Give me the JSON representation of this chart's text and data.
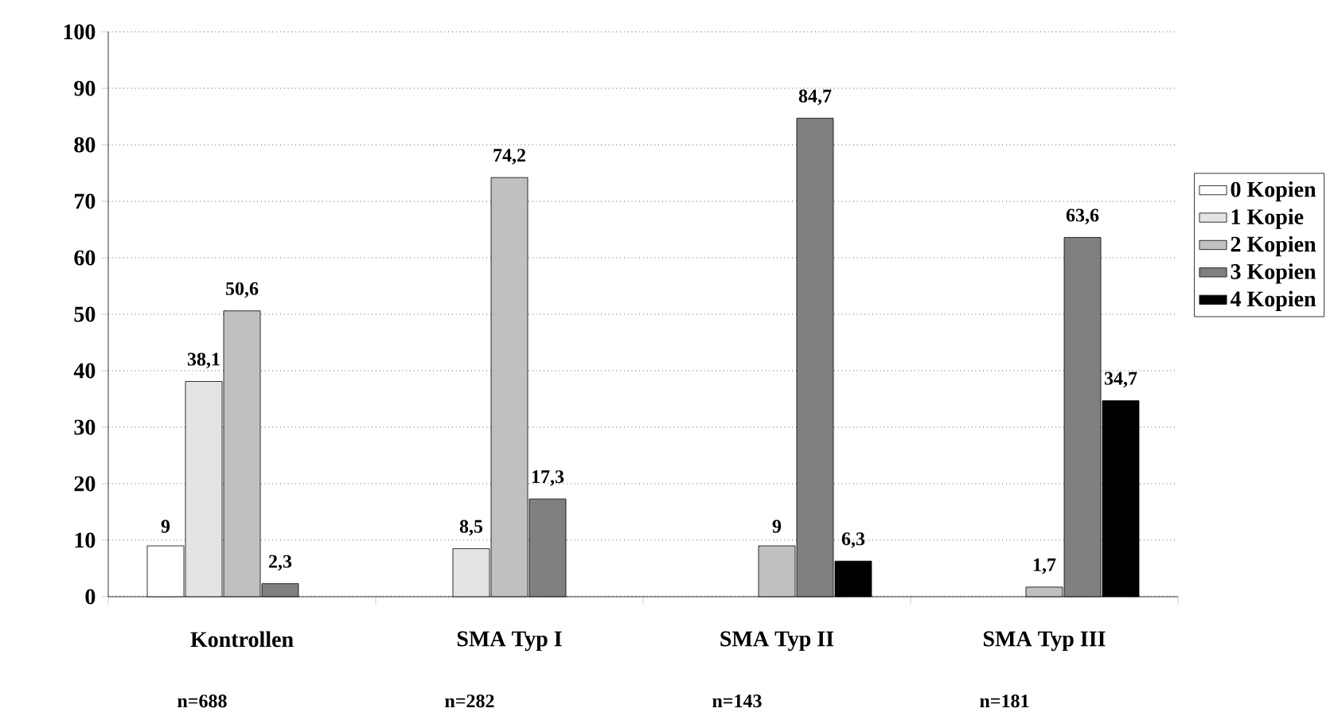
{
  "chart_data": {
    "type": "bar",
    "categories": [
      "Kontrollen",
      "SMA Typ I",
      "SMA Typ II",
      "SMA Typ III"
    ],
    "series": [
      {
        "name": "0 Kopien",
        "color": "#ffffff",
        "values": [
          9,
          null,
          null,
          null
        ],
        "value_labels": [
          "9",
          null,
          null,
          null
        ]
      },
      {
        "name": "1 Kopie",
        "color": "#e4e4e4",
        "values": [
          38.1,
          8.5,
          null,
          null
        ],
        "value_labels": [
          "38,1",
          "8,5",
          null,
          null
        ]
      },
      {
        "name": "2 Kopien",
        "color": "#c0c0c0",
        "values": [
          50.6,
          74.2,
          9,
          1.7
        ],
        "value_labels": [
          "50,6",
          "74,2",
          "9",
          "1,7"
        ]
      },
      {
        "name": "3 Kopien",
        "color": "#808080",
        "values": [
          2.3,
          17.3,
          84.7,
          63.6
        ],
        "value_labels": [
          "2,3",
          "17,3",
          "84,7",
          "63,6"
        ]
      },
      {
        "name": "4 Kopien",
        "color": "#000000",
        "values": [
          null,
          null,
          6.3,
          34.7
        ],
        "value_labels": [
          null,
          null,
          "6,3",
          "34,7"
        ]
      }
    ],
    "ylim": [
      0,
      100
    ],
    "yticks": [
      0,
      10,
      20,
      30,
      40,
      50,
      60,
      70,
      80,
      90,
      100
    ],
    "grid": "y",
    "legend": "right",
    "annotations": [
      "n=688",
      "n=282",
      "n=143",
      "n=181"
    ]
  }
}
